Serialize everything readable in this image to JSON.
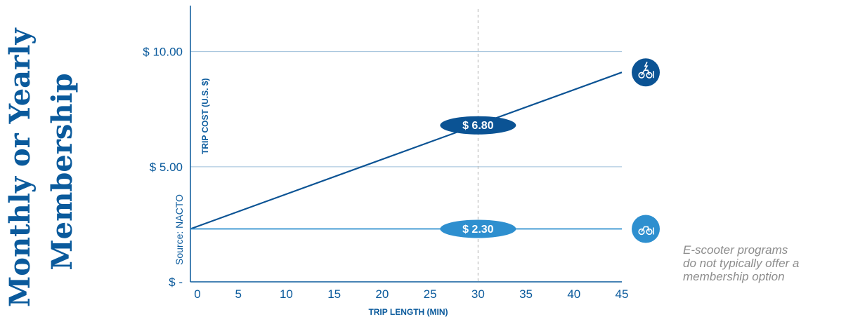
{
  "side_title": [
    "Monthly or Yearly",
    "Membership"
  ],
  "note_lines": [
    "E-scooter programs",
    "do not typically offer a",
    "membership option"
  ],
  "colors": {
    "primary": "#0a5a9c",
    "dark_series": "#0b5394",
    "light_series": "#2e8fcf",
    "grid": "#9dbfd9",
    "note": "#8c8c8c"
  },
  "icons": [
    "e-bike-icon",
    "bike-icon"
  ],
  "chart_data": {
    "type": "line",
    "xlabel": "TRIP LENGTH (MIN)",
    "ylabel": "TRIP COST (U.S. $)",
    "source": "Source: NACTO",
    "x_ticks": [
      0,
      5,
      10,
      15,
      20,
      25,
      30,
      35,
      40,
      45
    ],
    "x_tick_labels": [
      "0",
      "5",
      "10",
      "15",
      "20",
      "25",
      "30",
      "35",
      "40",
      "45"
    ],
    "y_ticks": [
      0,
      5,
      10
    ],
    "y_tick_labels": [
      "$ -",
      "$ 5.00",
      "$ 10.00"
    ],
    "xlim": [
      0,
      45
    ],
    "ylim": [
      0,
      12
    ],
    "grid": "horizontal",
    "highlight_x": 30,
    "series": [
      {
        "icon": "e-bike-icon",
        "color": "#0b5394",
        "x": [
          0,
          45
        ],
        "y": [
          2.3,
          9.1
        ]
      },
      {
        "icon": "bike-icon",
        "color": "#2e8fcf",
        "x": [
          0,
          45
        ],
        "y": [
          2.3,
          2.3
        ]
      }
    ],
    "annotations": [
      {
        "label": "$ 6.80",
        "x": 30,
        "y": 6.8,
        "color": "#0b5394"
      },
      {
        "label": "$ 2.30",
        "x": 30,
        "y": 2.3,
        "color": "#2e8fcf"
      }
    ]
  }
}
